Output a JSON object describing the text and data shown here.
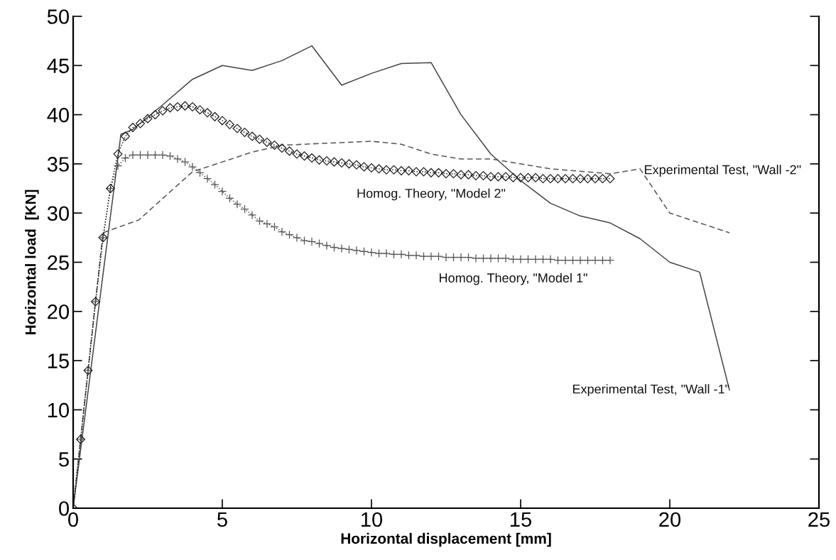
{
  "chart_data": {
    "type": "line",
    "xlabel": "Horizontal displacement [mm]",
    "ylabel": "Horizontal load  [KN]",
    "xlim": [
      0,
      25
    ],
    "xticks": [
      0,
      5,
      10,
      15,
      20,
      25
    ],
    "ylim": [
      0,
      50
    ],
    "yticks": [
      0,
      5,
      10,
      15,
      20,
      25,
      30,
      35,
      40,
      45,
      50
    ],
    "grid": false,
    "legend": false,
    "series": [
      {
        "color": "#444444",
        "line_style": "solid",
        "marker": "none",
        "x": [
          0,
          1.6,
          2,
          3,
          4,
          5,
          6,
          7,
          8,
          9,
          10,
          11,
          12,
          13,
          14,
          15,
          16,
          17,
          18,
          19,
          20,
          21,
          22
        ],
        "values": [
          0,
          38,
          38.5,
          41,
          43.6,
          45,
          44.5,
          45.5,
          47,
          43,
          44.2,
          45.2,
          45.3,
          40,
          36,
          33.3,
          31,
          29.7,
          29,
          27.4,
          25,
          24,
          12
        ]
      },
      {
        "color": "#555555",
        "line_style": "dashed",
        "marker": "none",
        "x": [
          0,
          1,
          2.2,
          4,
          5,
          6,
          7,
          10,
          11,
          12,
          13,
          14,
          16,
          18,
          19,
          20,
          22
        ],
        "values": [
          0,
          28,
          29.3,
          34.2,
          35.2,
          36.2,
          36.9,
          37.3,
          37,
          36,
          35.5,
          35.5,
          34.5,
          34,
          34.5,
          30,
          28
        ]
      },
      {
        "color": "#555555",
        "line_style": "dotted",
        "marker": "cross",
        "x": [
          0,
          0.25,
          0.5,
          0.75,
          1,
          1.25,
          1.5,
          1.75,
          2,
          2.25,
          2.5,
          2.75,
          3,
          3.25,
          3.5,
          3.75,
          4,
          4.25,
          4.5,
          4.75,
          5,
          5.25,
          5.5,
          5.75,
          6,
          6.25,
          6.5,
          6.75,
          7,
          7.25,
          7.5,
          7.75,
          8,
          8.25,
          8.5,
          8.75,
          9,
          9.25,
          9.5,
          9.75,
          10,
          10.25,
          10.5,
          10.75,
          11,
          11.25,
          11.5,
          11.75,
          12,
          12.25,
          12.5,
          12.75,
          13,
          13.25,
          13.5,
          13.75,
          14,
          14.25,
          14.5,
          14.75,
          15,
          15.25,
          15.5,
          15.75,
          16,
          16.25,
          16.5,
          16.75,
          17,
          17.25,
          17.5,
          17.75,
          18
        ],
        "values": [
          0,
          7,
          14,
          21,
          27.5,
          32.5,
          34.8,
          35.6,
          35.9,
          35.9,
          35.9,
          35.9,
          35.9,
          35.8,
          35.5,
          35.2,
          34.7,
          34.1,
          33.5,
          32.9,
          32.2,
          31.5,
          30.9,
          30.4,
          29.8,
          29.2,
          28.9,
          28.6,
          28.1,
          27.8,
          27.5,
          27.2,
          27.1,
          26.9,
          26.7,
          26.5,
          26.4,
          26.3,
          26.2,
          26.1,
          26,
          25.9,
          25.9,
          25.8,
          25.8,
          25.7,
          25.7,
          25.6,
          25.6,
          25.6,
          25.5,
          25.5,
          25.5,
          25.5,
          25.4,
          25.4,
          25.4,
          25.4,
          25.4,
          25.3,
          25.3,
          25.3,
          25.3,
          25.3,
          25.3,
          25.2,
          25.2,
          25.2,
          25.2,
          25.2,
          25.2,
          25.2,
          25.2
        ]
      },
      {
        "color": "#222222",
        "line_style": "dotted",
        "marker": "diamond",
        "x": [
          0,
          0.25,
          0.5,
          0.75,
          1,
          1.25,
          1.5,
          1.75,
          2,
          2.25,
          2.5,
          2.75,
          3,
          3.25,
          3.5,
          3.75,
          4,
          4.25,
          4.5,
          4.75,
          5,
          5.25,
          5.5,
          5.75,
          6,
          6.25,
          6.5,
          6.75,
          7,
          7.25,
          7.5,
          7.75,
          8,
          8.25,
          8.5,
          8.75,
          9,
          9.25,
          9.5,
          9.75,
          10,
          10.25,
          10.5,
          10.75,
          11,
          11.25,
          11.5,
          11.75,
          12,
          12.25,
          12.5,
          12.75,
          13,
          13.25,
          13.5,
          13.75,
          14,
          14.25,
          14.5,
          14.75,
          15,
          15.25,
          15.5,
          15.75,
          16,
          16.25,
          16.5,
          16.75,
          17,
          17.25,
          17.5,
          17.75,
          18
        ],
        "values": [
          0,
          7,
          14,
          21,
          27.5,
          32.5,
          36,
          37.8,
          38.7,
          39.1,
          39.6,
          40,
          40.4,
          40.7,
          40.8,
          40.9,
          40.8,
          40.5,
          40.2,
          39.8,
          39.4,
          39,
          38.6,
          38.2,
          37.8,
          37.5,
          37.2,
          36.9,
          36.6,
          36.3,
          36,
          35.8,
          35.6,
          35.4,
          35.3,
          35.2,
          35.1,
          35,
          34.9,
          34.7,
          34.6,
          34.5,
          34.4,
          34.4,
          34.3,
          34.3,
          34.2,
          34.2,
          34.1,
          34.1,
          34,
          34,
          33.9,
          33.9,
          33.8,
          33.8,
          33.7,
          33.7,
          33.7,
          33.6,
          33.6,
          33.6,
          33.6,
          33.5,
          33.5,
          33.5,
          33.5,
          33.5,
          33.5,
          33.5,
          33.5,
          33.5,
          33.5
        ]
      }
    ],
    "annotations": [
      {
        "text": "Homog. Theory, \"Model 2\"",
        "x": 12,
        "y": 34.1
      },
      {
        "text": "Experimental Test, \"Wall -2\"",
        "x": 19,
        "y": 34.5
      },
      {
        "text": "Homog. Theory, \"Model 1\"",
        "x": 14.75,
        "y": 25.3
      },
      {
        "text": "Experimental Test, \"Wall -1\"",
        "x": 22,
        "y": 12
      }
    ]
  }
}
